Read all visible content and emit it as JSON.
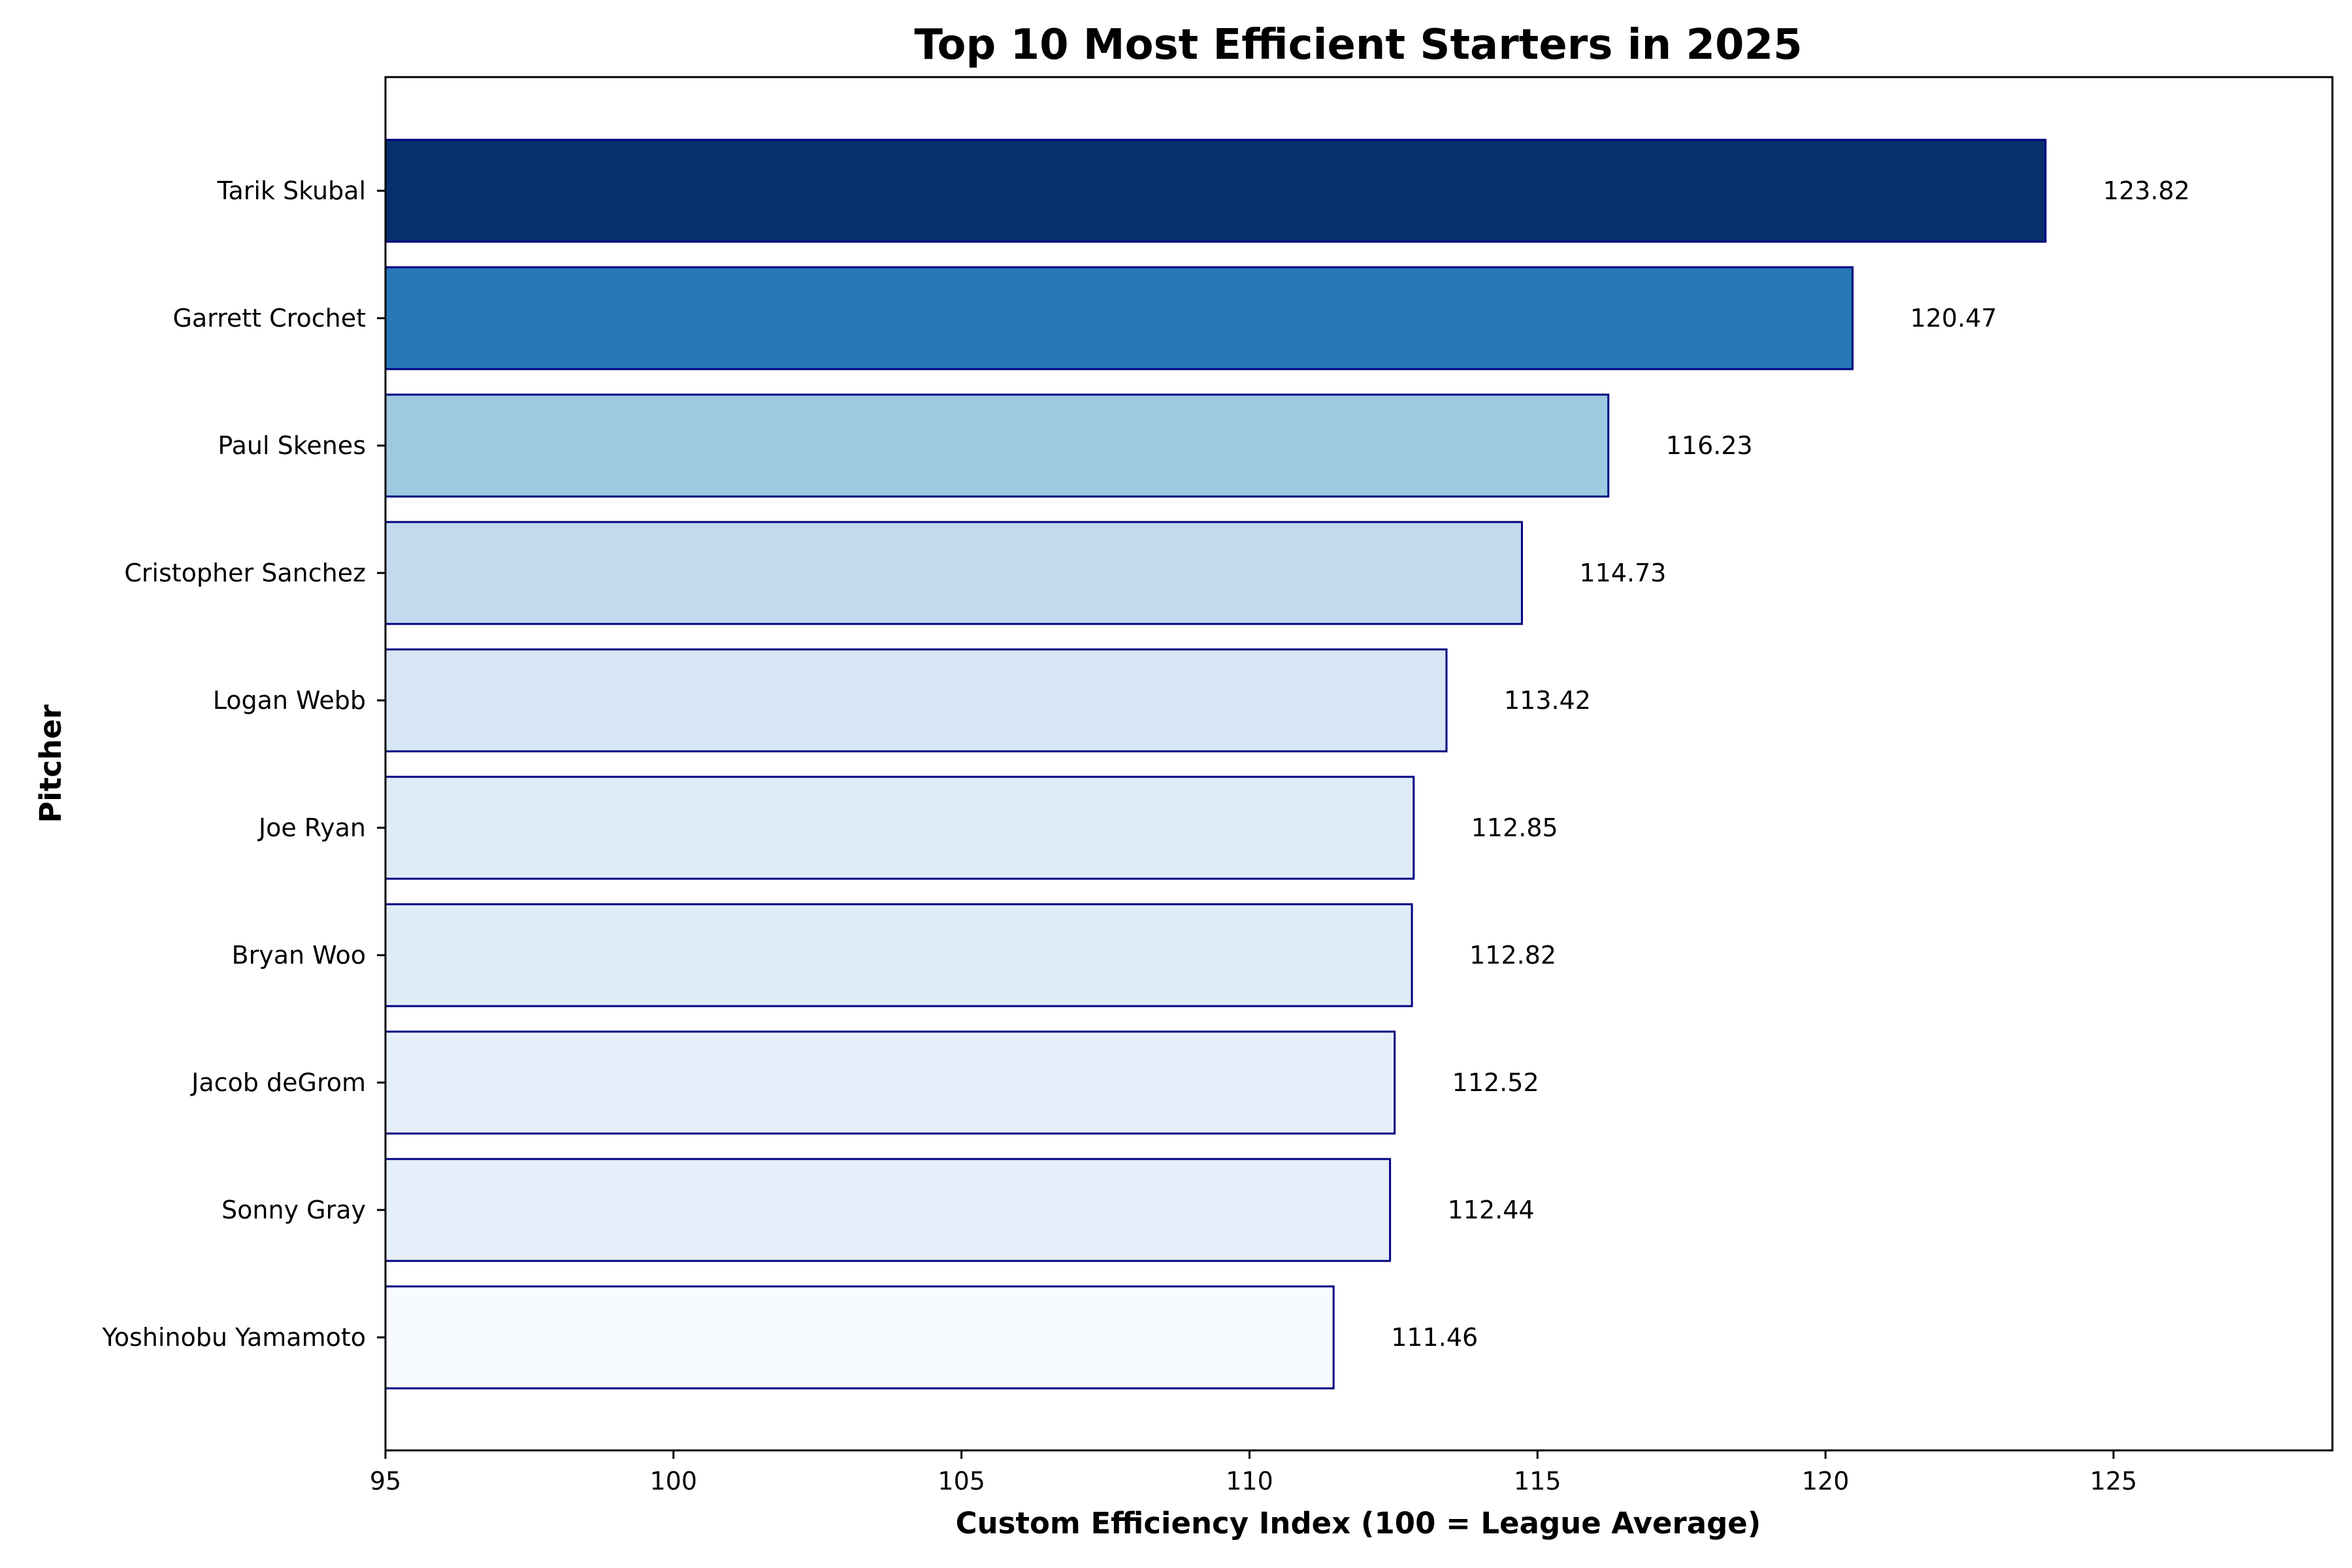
{
  "chart_data": {
    "type": "bar",
    "orientation": "horizontal",
    "title": "Top 10 Most Efficient Starters in 2025",
    "xlabel": "Custom Efficiency Index (100 = League Average)",
    "ylabel": "Pitcher",
    "xlim": [
      95,
      128.8
    ],
    "xticks": [
      95,
      100,
      105,
      110,
      115,
      120,
      125
    ],
    "grid": false,
    "bar_edge_color": "#000080",
    "categories": [
      "Tarik Skubal",
      "Garrett Crochet",
      "Paul Skenes",
      "Cristopher Sanchez",
      "Logan Webb",
      "Joe Ryan",
      "Bryan Woo",
      "Jacob deGrom",
      "Sonny Gray",
      "Yoshinobu Yamamoto"
    ],
    "values": [
      123.82,
      120.47,
      116.23,
      114.73,
      113.42,
      112.85,
      112.82,
      112.52,
      112.44,
      111.46
    ],
    "value_labels": [
      "123.82",
      "120.47",
      "116.23",
      "114.73",
      "113.42",
      "112.85",
      "112.82",
      "112.52",
      "112.44",
      "111.46"
    ],
    "bar_colors": [
      "#08306b",
      "#2878b8",
      "#9dc9e1",
      "#c3d9ee",
      "#d6e6f4",
      "#dfecf8",
      "#dfecf8",
      "#e5eff9",
      "#e5eff9",
      "#f7fbff"
    ]
  }
}
